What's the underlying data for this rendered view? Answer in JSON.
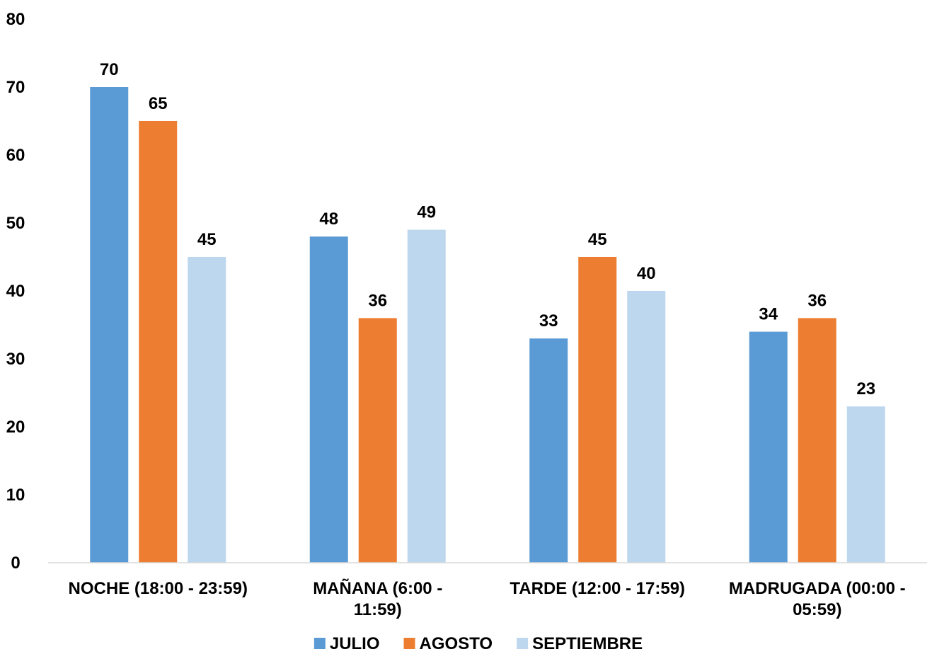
{
  "chart_data": {
    "type": "bar",
    "categories": [
      [
        "NOCHE (18:00 - 23:59)"
      ],
      [
        "MAÑANA (6:00 -",
        "11:59)"
      ],
      [
        "TARDE (12:00 - 17:59)"
      ],
      [
        "MADRUGADA (00:00 -",
        "05:59)"
      ]
    ],
    "series": [
      {
        "name": "JULIO",
        "color": "#5B9BD5",
        "values": [
          70,
          48,
          33,
          34
        ]
      },
      {
        "name": "AGOSTO",
        "color": "#ED7D31",
        "values": [
          65,
          36,
          45,
          36
        ]
      },
      {
        "name": "SEPTIEMBRE",
        "color": "#BDD7EE",
        "values": [
          45,
          49,
          40,
          23
        ]
      }
    ],
    "ylim": [
      0,
      80
    ],
    "yticks": [
      0,
      10,
      20,
      30,
      40,
      50,
      60,
      70,
      80
    ],
    "grid": false,
    "legend_position": "bottom",
    "data_labels": true
  }
}
